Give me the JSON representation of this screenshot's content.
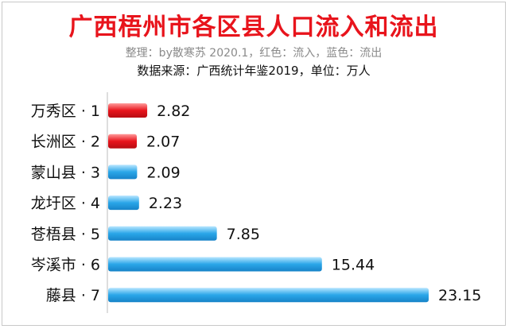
{
  "title": "广西梧州市各区县人口流入和流出",
  "subtitle": "整理：by散寒苏  2020.1，红色：流入，蓝色：流出",
  "source": "数据来源：广西统计年鉴2019，单位：万人",
  "colors": {
    "inflow": "#e8141c",
    "outflow": "#2aa6e8",
    "title": "#e8141c"
  },
  "chart_data": {
    "type": "bar",
    "orientation": "horizontal",
    "categories": [
      "万秀区 · 1",
      "长洲区 · 2",
      "蒙山县 · 3",
      "龙圩区 · 4",
      "苍梧县 · 5",
      "岑溪市 · 6",
      "藤县 · 7"
    ],
    "values": [
      2.82,
      2.07,
      2.09,
      2.23,
      7.85,
      15.44,
      23.15
    ],
    "value_labels": [
      "2.82",
      "2.07",
      "2.09",
      "2.23",
      "7.85",
      "15.44",
      "23.15"
    ],
    "direction": [
      "inflow",
      "inflow",
      "outflow",
      "outflow",
      "outflow",
      "outflow",
      "outflow"
    ],
    "xlim": [
      0,
      23.15
    ],
    "grid": false,
    "legend": "none"
  }
}
